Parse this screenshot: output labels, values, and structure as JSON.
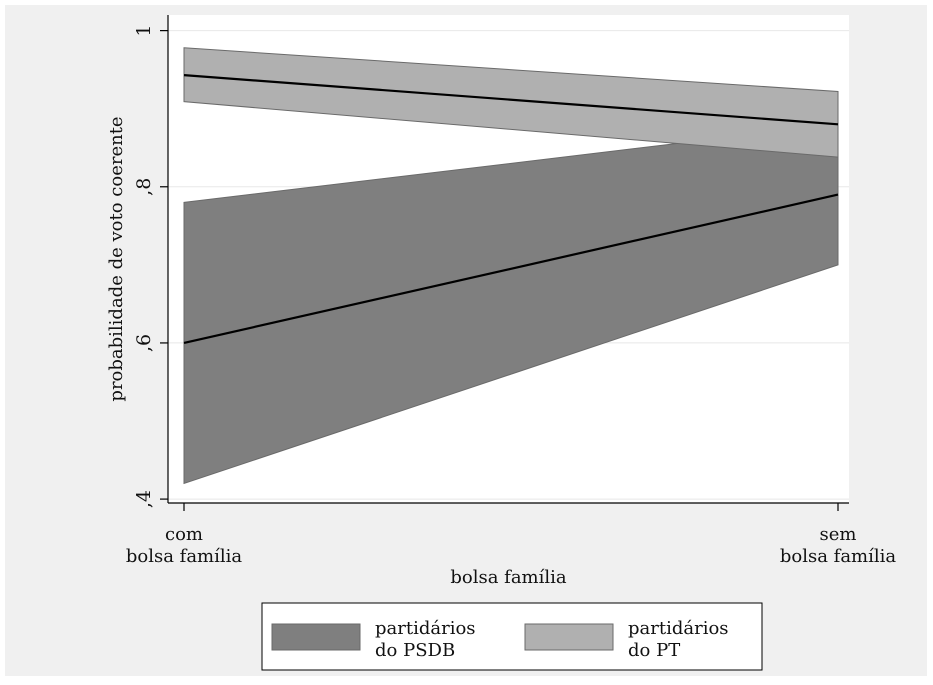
{
  "chart_data": {
    "type": "area",
    "title": "",
    "xlabel": "bolsa família",
    "ylabel": "probabilidade de voto coerente",
    "categories": [
      [
        "com",
        "bolsa família"
      ],
      [
        "sem",
        "bolsa família"
      ]
    ],
    "yticks": [
      {
        "value": 0.4,
        "label": ",4"
      },
      {
        "value": 0.6,
        "label": ",6"
      },
      {
        "value": 0.8,
        "label": ",8"
      },
      {
        "value": 1.0,
        "label": "1"
      }
    ],
    "ylim": [
      0.395,
      1.02
    ],
    "grid": true,
    "legend_position": "bottom",
    "series": [
      {
        "name": [
          "partidários",
          "do PSDB"
        ],
        "color": "#7f7f7f",
        "values": [
          0.6,
          0.79
        ],
        "lower": [
          0.42,
          0.7
        ],
        "upper": [
          0.78,
          0.88
        ]
      },
      {
        "name": [
          "partidários",
          "do PT"
        ],
        "color": "#b0b0b0",
        "values": [
          0.943,
          0.88
        ],
        "lower": [
          0.909,
          0.838
        ],
        "upper": [
          0.978,
          0.922
        ]
      }
    ]
  }
}
